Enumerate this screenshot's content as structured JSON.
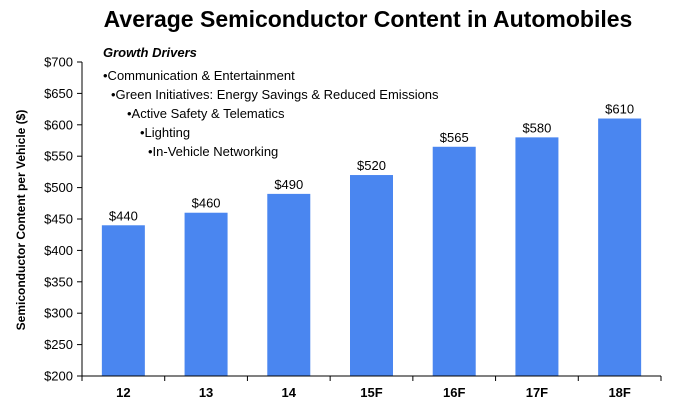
{
  "chart_data": {
    "type": "bar",
    "title": "Average Semiconductor Content in Automobiles",
    "ylabel": "Semiconductor Content per Vehicle ($)",
    "xlabel": "",
    "categories": [
      "12",
      "13",
      "14",
      "15F",
      "16F",
      "17F",
      "18F"
    ],
    "values": [
      440,
      460,
      490,
      520,
      565,
      580,
      610
    ],
    "data_labels": [
      "$440",
      "$460",
      "$490",
      "$520",
      "$565",
      "$580",
      "$610"
    ],
    "ylim": [
      200,
      700
    ],
    "yticks": [
      200,
      250,
      300,
      350,
      400,
      450,
      500,
      550,
      600,
      650,
      700
    ],
    "ytick_labels": [
      "$200",
      "$250",
      "$300",
      "$350",
      "$400",
      "$450",
      "$500",
      "$550",
      "$600",
      "$650",
      "$700"
    ],
    "grid": false,
    "bar_color": "#4A86F0",
    "annotation": {
      "heading": "Growth Drivers",
      "items": [
        "•Communication & Entertainment",
        "•Green Initiatives:  Energy Savings & Reduced Emissions",
        "•Active Safety & Telematics",
        "•Lighting",
        "•In-Vehicle Networking"
      ]
    }
  }
}
